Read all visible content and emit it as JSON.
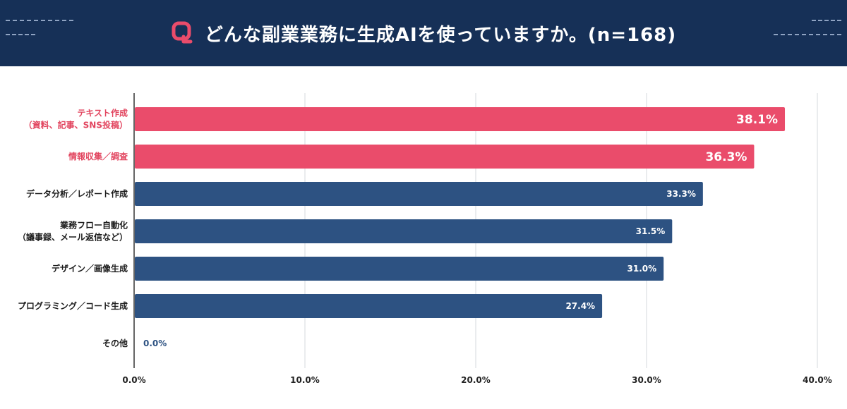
{
  "header": {
    "title": "どんな副業業務に生成AIを使っていますか。(n=168)",
    "background": "#163057",
    "icon": "q-logo-icon",
    "icon_color": "#ea4c6b"
  },
  "colors": {
    "highlight": "#ea4c6b",
    "default": "#2d5282",
    "label_highlight": "#e2455f",
    "label_default": "#1b1b1b"
  },
  "chart_data": {
    "type": "bar",
    "orientation": "horizontal",
    "title": "どんな副業業務に生成AIを使っていますか。(n=168)",
    "categories": [
      [
        "テキスト作成",
        "（資料、記事、SNS投稿）"
      ],
      [
        "情報収集／調査"
      ],
      [
        "データ分析／レポート作成"
      ],
      [
        "業務フロー自動化",
        "（議事録、メール返信など）"
      ],
      [
        "デザイン／画像生成"
      ],
      [
        "プログラミング／コード生成"
      ],
      [
        "その他"
      ]
    ],
    "values": [
      38.1,
      36.3,
      33.3,
      31.5,
      31.0,
      27.4,
      0.0
    ],
    "value_labels": [
      "38.1%",
      "36.3%",
      "33.3%",
      "31.5%",
      "31.0%",
      "27.4%",
      "0.0%"
    ],
    "highlighted": [
      true,
      true,
      false,
      false,
      false,
      false,
      false
    ],
    "xlim": [
      0,
      40
    ],
    "xticks": [
      0,
      10,
      20,
      30,
      40
    ],
    "xtick_labels": [
      "0.0%",
      "10.0%",
      "20.0%",
      "30.0%",
      "40.0%"
    ],
    "grid": true,
    "xlabel": "",
    "ylabel": ""
  }
}
